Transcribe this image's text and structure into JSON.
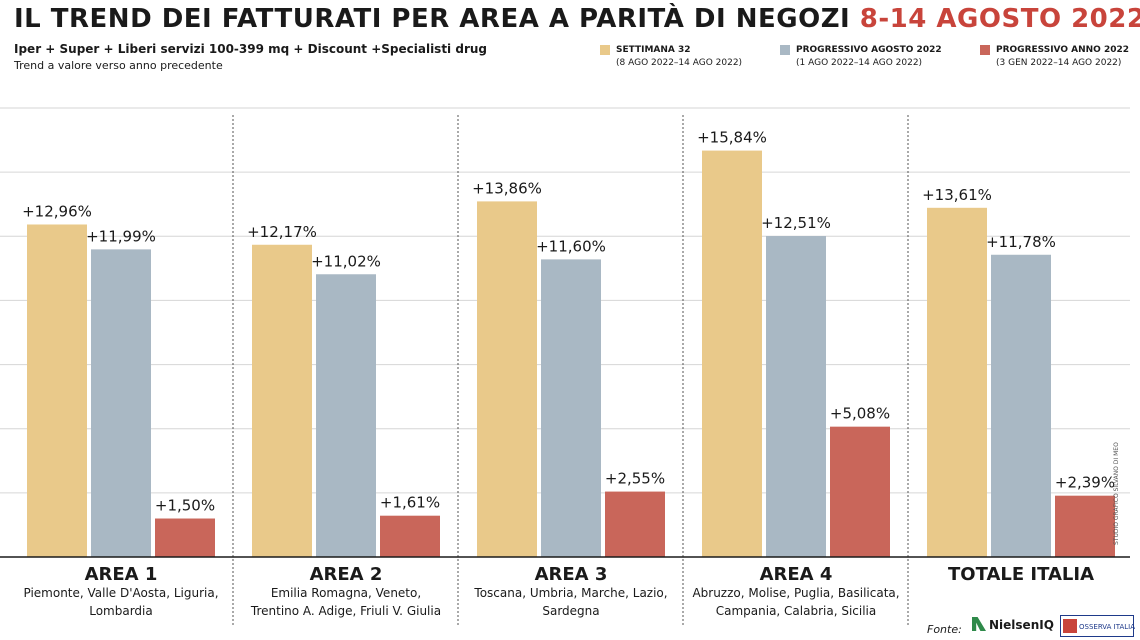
{
  "header": {
    "title_main": "IL TREND DEI FATTURATI PER AREA A PARITÀ DI NEGOZI",
    "title_dates": "8-14 AGOSTO 2022",
    "subtitle": "Iper + Super + Liberi servizi 100-399 mq + Discount +Specialisti drug",
    "subtitle2": "Trend a valore verso anno precedente"
  },
  "legend": [
    {
      "title": "SETTIMANA 32",
      "range": "(8 AGO 2022–14 AGO 2022)",
      "color": "#e9c98a"
    },
    {
      "title": "PROGRESSIVO AGOSTO 2022",
      "range": "(1 AGO 2022–14 AGO 2022)",
      "color": "#a9b8c4"
    },
    {
      "title": "PROGRESSIVO ANNO 2022",
      "range": "(3 GEN 2022–14 AGO 2022)",
      "color": "#c9665a"
    }
  ],
  "chart_data": {
    "type": "bar",
    "categories": [
      "AREA 1",
      "AREA 2",
      "AREA 3",
      "AREA 4",
      "TOTALE ITALIA"
    ],
    "category_regions": [
      [
        "Piemonte, Valle D'Aosta, Liguria,",
        "Lombardia"
      ],
      [
        "Emilia Romagna, Veneto,",
        "Trentino A. Adige, Friuli V. Giulia"
      ],
      [
        "Toscana, Umbria, Marche, Lazio,",
        "Sardegna"
      ],
      [
        "Abruzzo, Molise, Puglia, Basilicata,",
        "Campania, Calabria, Sicilia"
      ],
      []
    ],
    "series": [
      {
        "name": "SETTIMANA 32",
        "values": [
          12.96,
          12.17,
          13.86,
          15.84,
          13.61
        ],
        "labels": [
          "+12,96%",
          "+12,17%",
          "+13,86%",
          "+15,84%",
          "+13,61%"
        ],
        "color": "#e9c98a"
      },
      {
        "name": "PROGRESSIVO AGOSTO 2022",
        "values": [
          11.99,
          11.02,
          11.6,
          12.51,
          11.78
        ],
        "labels": [
          "+11,99%",
          "+11,02%",
          "+11,60%",
          "+12,51%",
          "+11,78%"
        ],
        "color": "#a9b8c4"
      },
      {
        "name": "PROGRESSIVO ANNO 2022",
        "values": [
          1.5,
          1.61,
          2.55,
          5.08,
          2.39
        ],
        "labels": [
          "+1,50%",
          "+1,61%",
          "+2,55%",
          "+5,08%",
          "+2,39%"
        ],
        "color": "#c9665a"
      }
    ],
    "ylim": [
      0,
      17.5
    ],
    "grid": true
  },
  "footer": {
    "fonte": "Fonte:",
    "nielsen": "NielsenIQ",
    "osserva": "OSSERVA ITALIA",
    "credit": "STUDIO GRAFICO SILVANO DI MEO"
  }
}
